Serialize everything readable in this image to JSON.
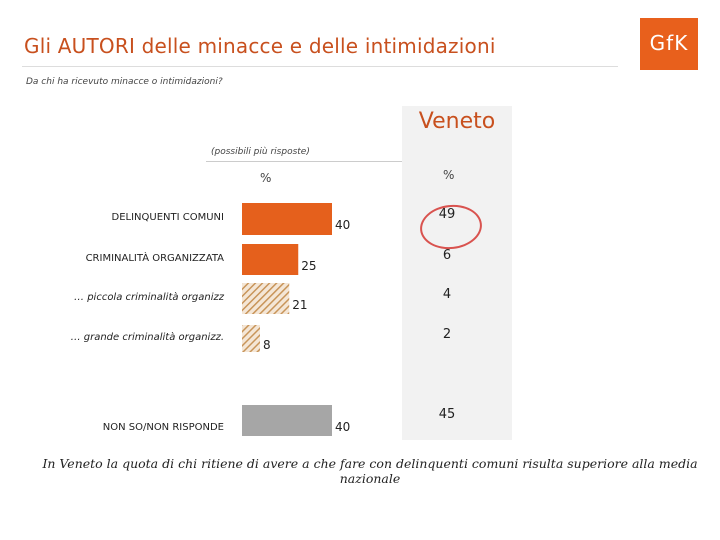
{
  "title": "Gli AUTORI delle minacce e delle intimidazioni",
  "subtitle": "Da chi ha ricevuto minacce o intimidazioni?",
  "logo_text": "GfK",
  "note": "(possibili più risposte)",
  "region": "Veneto",
  "pct_symbol": "%",
  "footer": "In Veneto la quota di chi ritiene di avere a che fare con delinquenti comuni risulta  superiore alla media nazionale",
  "colors": {
    "orange": "#e5601c",
    "hatch": "#c8955a",
    "gray": "#a6a6a6",
    "accent": "#c8501e"
  },
  "chart_data": {
    "type": "bar",
    "orientation": "horizontal",
    "categories": [
      "DELINQUENTI COMUNI",
      "CRIMINALITÀ ORGANIZZATA",
      "… piccola criminalità organizz",
      "… grande criminalità organizz.",
      "NON SO/NON RISPONDE"
    ],
    "values": [
      40,
      25,
      21,
      8,
      40
    ],
    "styles": [
      "solid",
      "solid",
      "hatched",
      "hatched",
      "gray"
    ],
    "region_values": [
      49,
      6,
      4,
      2,
      45
    ],
    "highlight_region_index": 0,
    "xlim": [
      0,
      50
    ]
  }
}
